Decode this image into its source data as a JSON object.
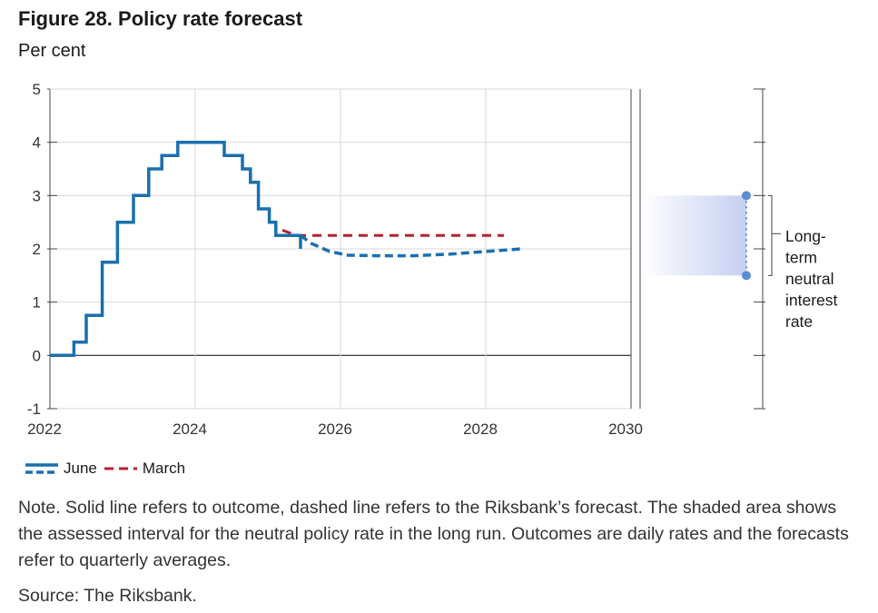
{
  "figure": {
    "title": "Figure 28. Policy rate forecast",
    "subtitle": "Per cent",
    "note": "Note. Solid line refers to outcome, dashed line refers to the Riksbank’s forecast. The shaded area shows the assessed interval for the neutral policy rate in the long run. Outcomes are daily rates and the forecasts refer to quarterly averages.",
    "source": "Source: The Riksbank."
  },
  "chart_data": {
    "type": "line",
    "x_ticks": [
      "2022",
      "2024",
      "2026",
      "2028",
      "2030"
    ],
    "y_ticks": [
      "-1",
      "0",
      "1",
      "2",
      "3",
      "4",
      "5"
    ],
    "xlim": [
      2022,
      2030
    ],
    "ylim": [
      -1,
      5
    ],
    "grid": true,
    "legend_position": "bottom-left",
    "series": [
      {
        "name": "June",
        "color": "#1a6faf",
        "outcome": [
          [
            2022.0,
            0.0
          ],
          [
            2022.33,
            0.0
          ],
          [
            2022.33,
            0.25
          ],
          [
            2022.5,
            0.25
          ],
          [
            2022.5,
            0.75
          ],
          [
            2022.72,
            0.75
          ],
          [
            2022.72,
            1.75
          ],
          [
            2022.93,
            1.75
          ],
          [
            2022.93,
            2.5
          ],
          [
            2023.15,
            2.5
          ],
          [
            2023.15,
            3.0
          ],
          [
            2023.36,
            3.0
          ],
          [
            2023.36,
            3.5
          ],
          [
            2023.54,
            3.5
          ],
          [
            2023.54,
            3.75
          ],
          [
            2023.76,
            3.75
          ],
          [
            2023.76,
            4.0
          ],
          [
            2024.4,
            4.0
          ],
          [
            2024.4,
            3.75
          ],
          [
            2024.65,
            3.75
          ],
          [
            2024.65,
            3.5
          ],
          [
            2024.76,
            3.5
          ],
          [
            2024.76,
            3.25
          ],
          [
            2024.87,
            3.25
          ],
          [
            2024.87,
            2.75
          ],
          [
            2025.02,
            2.75
          ],
          [
            2025.02,
            2.5
          ],
          [
            2025.11,
            2.5
          ],
          [
            2025.11,
            2.25
          ],
          [
            2025.45,
            2.25
          ],
          [
            2025.45,
            2.0
          ]
        ],
        "forecast": [
          [
            2025.45,
            2.25
          ],
          [
            2025.6,
            2.1
          ],
          [
            2025.85,
            1.95
          ],
          [
            2026.1,
            1.88
          ],
          [
            2026.5,
            1.87
          ],
          [
            2027.0,
            1.87
          ],
          [
            2027.5,
            1.9
          ],
          [
            2028.0,
            1.95
          ],
          [
            2028.5,
            2.0
          ]
        ]
      },
      {
        "name": "March",
        "color": "#b8202f",
        "forecast": [
          [
            2025.2,
            2.35
          ],
          [
            2025.4,
            2.25
          ],
          [
            2026.0,
            2.25
          ],
          [
            2027.0,
            2.25
          ],
          [
            2028.25,
            2.25
          ]
        ]
      }
    ],
    "neutral_rate": {
      "low": 1.5,
      "high": 3.0,
      "label_lines": [
        "Long-",
        "term",
        "neutral",
        "interest",
        "rate"
      ]
    }
  }
}
